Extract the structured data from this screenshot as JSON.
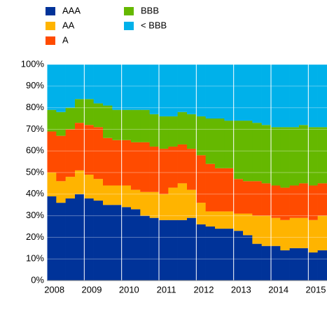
{
  "chart_data": {
    "type": "stacked_bar",
    "categories": [
      "2008",
      null,
      null,
      null,
      "2009",
      null,
      null,
      null,
      "2010",
      null,
      null,
      null,
      "2011",
      null,
      null,
      null,
      "2012",
      null,
      null,
      null,
      "2013",
      null,
      null,
      null,
      "2014",
      null,
      null,
      null,
      "2015",
      null
    ],
    "series": [
      {
        "name": "AAA",
        "color": "#003399",
        "values": [
          39,
          36,
          38,
          40,
          38,
          37,
          35,
          35,
          34,
          33,
          30,
          29,
          28,
          28,
          28,
          29,
          26,
          25,
          24,
          24,
          23,
          21,
          17,
          16,
          16,
          14,
          15,
          15,
          13,
          14
        ]
      },
      {
        "name": "AA",
        "color": "#ffb400",
        "values": [
          11,
          10,
          10,
          11,
          11,
          10,
          9,
          9,
          10,
          9,
          11,
          12,
          12,
          15,
          17,
          13,
          10,
          7,
          8,
          8,
          8,
          10,
          13,
          14,
          13,
          14,
          14,
          14,
          15,
          16
        ]
      },
      {
        "name": "A",
        "color": "#ff4b00",
        "values": [
          19,
          21,
          22,
          22,
          23,
          24,
          22,
          21,
          21,
          22,
          23,
          21,
          21,
          19,
          18,
          19,
          22,
          22,
          20,
          20,
          16,
          15,
          16,
          15,
          15,
          15,
          15,
          16,
          16,
          15
        ]
      },
      {
        "name": "BBB",
        "color": "#65b800",
        "values": [
          10,
          11,
          10,
          11,
          12,
          11,
          15,
          14,
          14,
          15,
          15,
          15,
          15,
          14,
          15,
          16,
          18,
          21,
          23,
          22,
          27,
          28,
          27,
          27,
          27,
          28,
          27,
          27,
          27,
          26
        ]
      },
      {
        "name": "< BBB",
        "color": "#00b1ea",
        "values": [
          21,
          22,
          20,
          16,
          16,
          18,
          19,
          21,
          21,
          21,
          21,
          23,
          24,
          24,
          22,
          23,
          24,
          25,
          25,
          26,
          26,
          26,
          27,
          28,
          29,
          29,
          29,
          28,
          29,
          29
        ]
      }
    ],
    "ylim": [
      0,
      100
    ],
    "yticks": [
      {
        "value": 0,
        "label": "0%"
      },
      {
        "value": 10,
        "label": "10%"
      },
      {
        "value": 20,
        "label": "20%"
      },
      {
        "value": 30,
        "label": "30%"
      },
      {
        "value": 40,
        "label": "40%"
      },
      {
        "value": 50,
        "label": "50%"
      },
      {
        "value": 60,
        "label": "60%"
      },
      {
        "value": 70,
        "label": "70%"
      },
      {
        "value": 80,
        "label": "80%"
      },
      {
        "value": 90,
        "label": "90%"
      },
      {
        "value": 100,
        "label": "100%"
      }
    ],
    "grid": true
  }
}
